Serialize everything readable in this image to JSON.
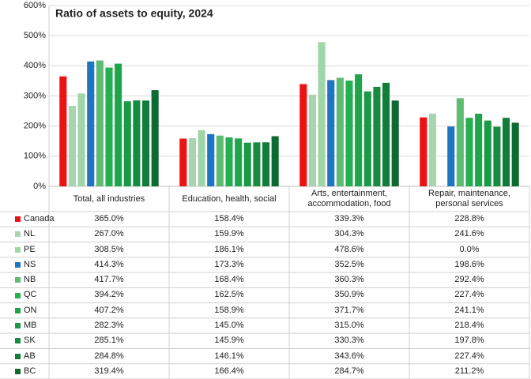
{
  "chart_data": {
    "type": "bar",
    "title": "Ratio of assets to equity, 2024",
    "categories": [
      "Total, all industries",
      "Education, health, social",
      "Arts, entertainment, accommodation, food",
      "Repair, maintenance, personal services"
    ],
    "ylim": [
      0,
      600
    ],
    "yticks": [
      {
        "value": 0,
        "label": "0%"
      },
      {
        "value": 100,
        "label": "100%"
      },
      {
        "value": 200,
        "label": "200%"
      },
      {
        "value": 300,
        "label": "300%"
      },
      {
        "value": 400,
        "label": "400%"
      },
      {
        "value": 500,
        "label": "500%"
      },
      {
        "value": 600,
        "label": "600%"
      }
    ],
    "grid": true,
    "series": [
      {
        "name": "Canada",
        "color": "#ee1111",
        "values": [
          365.0,
          158.4,
          339.3,
          228.8
        ],
        "value_labels": [
          "365.0%",
          "158.4%",
          "339.3%",
          "228.8%"
        ]
      },
      {
        "name": "NL",
        "color": "#a8d5b0",
        "values": [
          267.0,
          159.9,
          304.3,
          241.6
        ],
        "value_labels": [
          "267.0%",
          "159.9%",
          "304.3%",
          "241.6%"
        ]
      },
      {
        "name": "PE",
        "color": "#9fd6a8",
        "values": [
          308.5,
          186.1,
          478.6,
          0.0
        ],
        "value_labels": [
          "308.5%",
          "186.1%",
          "478.6%",
          "0.0%"
        ]
      },
      {
        "name": "NS",
        "color": "#1f74c4",
        "values": [
          414.3,
          173.3,
          352.5,
          198.6
        ],
        "value_labels": [
          "414.3%",
          "173.3%",
          "352.5%",
          "198.6%"
        ]
      },
      {
        "name": "NB",
        "color": "#5dbb72",
        "values": [
          417.7,
          168.4,
          360.3,
          292.4
        ],
        "value_labels": [
          "417.7%",
          "168.4%",
          "360.3%",
          "292.4%"
        ]
      },
      {
        "name": "QC",
        "color": "#24b050",
        "values": [
          394.2,
          162.5,
          350.9,
          227.4
        ],
        "value_labels": [
          "394.2%",
          "162.5%",
          "350.9%",
          "227.4%"
        ]
      },
      {
        "name": "ON",
        "color": "#1ea54c",
        "values": [
          407.2,
          158.9,
          371.7,
          241.1
        ],
        "value_labels": [
          "407.2%",
          "158.9%",
          "371.7%",
          "241.1%"
        ]
      },
      {
        "name": "MB",
        "color": "#1a9a46",
        "values": [
          282.3,
          145.0,
          315.0,
          218.4
        ],
        "value_labels": [
          "282.3%",
          "145.0%",
          "315.0%",
          "218.4%"
        ]
      },
      {
        "name": "SK",
        "color": "#168c40",
        "values": [
          285.1,
          145.9,
          330.3,
          197.8
        ],
        "value_labels": [
          "285.1%",
          "145.9%",
          "330.3%",
          "197.8%"
        ]
      },
      {
        "name": "AB",
        "color": "#117d39",
        "values": [
          284.8,
          146.1,
          343.6,
          227.4
        ],
        "value_labels": [
          "284.8%",
          "146.1%",
          "343.6%",
          "227.4%"
        ]
      },
      {
        "name": "BC",
        "color": "#0d6b31",
        "values": [
          319.4,
          166.4,
          284.7,
          211.2
        ],
        "value_labels": [
          "319.4%",
          "166.4%",
          "284.7%",
          "211.2%"
        ]
      }
    ]
  }
}
